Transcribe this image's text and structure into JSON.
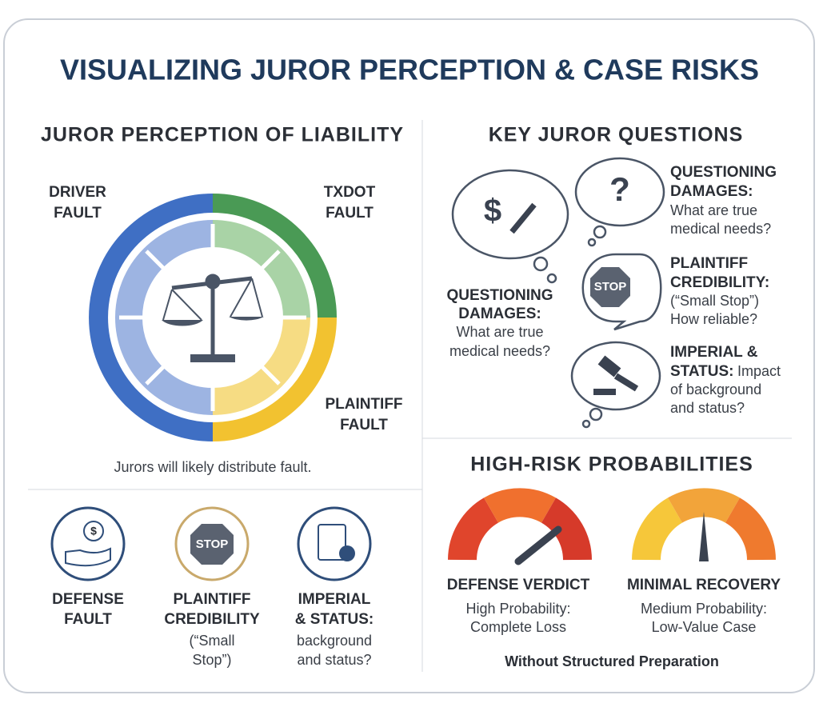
{
  "title": "VISUALIZING JUROR PERCEPTION & CASE RISKS",
  "liability": {
    "heading": "JUROR PERCEPTION OF LIABILITY",
    "labels": [
      [
        "DRIVER",
        "FAULT"
      ],
      [
        "TXDOT",
        "FAULT"
      ],
      [
        "PLAINTIFF",
        "FAULT"
      ]
    ],
    "caption": "Jurors will likely distribute fault."
  },
  "factors": [
    {
      "title": [
        "DEFENSE",
        "FAULT"
      ],
      "icon": "$"
    },
    {
      "title": [
        "PLAINTIFF",
        "CREDIBILITY"
      ],
      "text": [
        "(“Small",
        "Stop”)"
      ],
      "icon": "STOP"
    },
    {
      "title": [
        "IMPERIAL",
        "& STATUS:"
      ],
      "text": [
        "background",
        "and status?"
      ]
    }
  ],
  "questions": {
    "heading": "KEY JUROR QUESTIONS",
    "items": [
      {
        "title": [
          "QUESTIONING",
          "DAMAGES:"
        ],
        "text": [
          "What are true",
          "medical needs?"
        ],
        "icon": "?"
      },
      {
        "title": [
          "PLAINTIFF",
          "CREDIBILITY:"
        ],
        "text": [
          "(“Small Stop”)",
          "How reliable?"
        ],
        "icon": "STOP"
      },
      {
        "title": [
          "IMPERIAL &",
          "STATUS:"
        ],
        "text": [
          "Impact",
          "of background",
          "and status?"
        ]
      },
      {
        "title": [
          "QUESTIONING",
          "DAMAGES:"
        ],
        "text": [
          "What are true",
          "medical needs?"
        ],
        "icon": "$"
      }
    ]
  },
  "risks": {
    "heading": "HIGH-RISK PROBABILITIES",
    "gauges": [
      {
        "title": "DEFENSE VERDICT",
        "text": [
          "High Probability:",
          "Complete Loss"
        ]
      },
      {
        "title": "MINIMAL RECOVERY",
        "text": [
          "Medium Probability:",
          "Low-Value Case"
        ]
      }
    ],
    "footer": "Without Structured Preparation"
  }
}
